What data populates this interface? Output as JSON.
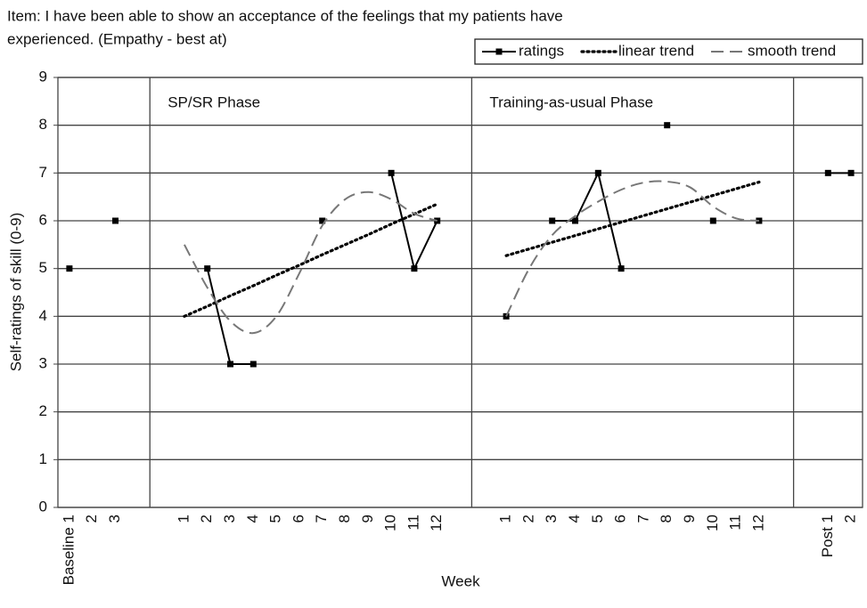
{
  "chart_data": {
    "type": "line",
    "title": [
      "Item: I have been able to show an acceptance of the feelings that my patients have",
      "experienced. (Empathy - best at)"
    ],
    "y_label": "Self-ratings of skill (0-9)",
    "x_label": "Week",
    "annotations": [
      "SP/SR Phase",
      "Training-as-usual Phase"
    ],
    "categories": [
      "Baseline 1",
      "2",
      "3",
      null,
      null,
      "1",
      "2",
      "3",
      "4",
      "5",
      "6",
      "7",
      "8",
      "9",
      "10",
      "11",
      "12",
      null,
      null,
      "1",
      "2",
      "3",
      "4",
      "5",
      "6",
      "7",
      "8",
      "9",
      "10",
      "11",
      "12",
      null,
      null,
      "Post 1",
      "2"
    ],
    "series": [
      {
        "name": "ratings",
        "color": "#000000",
        "style": "solid",
        "marker": true,
        "values": [
          5,
          null,
          6,
          null,
          null,
          null,
          5,
          3,
          3,
          null,
          null,
          6,
          null,
          null,
          7,
          5,
          6,
          null,
          null,
          4,
          null,
          6,
          6,
          7,
          5,
          null,
          8,
          null,
          6,
          null,
          6,
          null,
          null,
          7,
          7
        ]
      },
      {
        "name": "linear trend",
        "color": "#000000",
        "style": "dotted",
        "marker": false,
        "values": [
          null,
          null,
          null,
          null,
          null,
          4.0,
          4.21,
          4.43,
          4.64,
          4.86,
          5.07,
          5.29,
          5.5,
          5.71,
          5.93,
          6.14,
          6.35,
          null,
          null,
          5.27,
          5.41,
          5.55,
          5.69,
          5.83,
          5.97,
          6.11,
          6.25,
          6.39,
          6.53,
          6.67,
          6.81,
          null,
          null,
          null,
          null
        ]
      },
      {
        "name": "smooth trend",
        "color": "#777777",
        "style": "dashed",
        "marker": false,
        "values": [
          null,
          null,
          null,
          null,
          null,
          5.5,
          4.6,
          3.9,
          3.65,
          4.0,
          4.9,
          5.9,
          6.45,
          6.6,
          6.45,
          6.15,
          6.0,
          null,
          null,
          4.0,
          5.0,
          5.7,
          6.1,
          6.4,
          6.65,
          6.8,
          6.82,
          6.7,
          6.3,
          6.05,
          6.0,
          null,
          null,
          null,
          null
        ]
      }
    ],
    "ylim": [
      0,
      9
    ],
    "yticks": [
      0,
      1,
      2,
      3,
      4,
      5,
      6,
      7,
      8,
      9
    ],
    "grid": true,
    "legend": "top-right"
  }
}
